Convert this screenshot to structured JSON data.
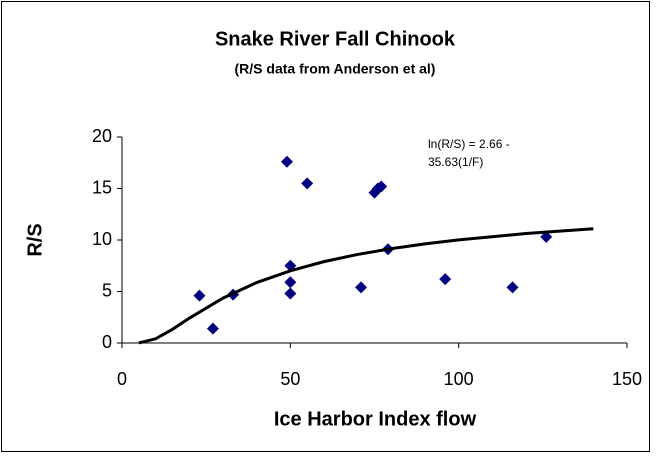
{
  "chart_data": {
    "type": "scatter",
    "title": "Snake River Fall Chinook",
    "subtitle": "(R/S data from Anderson et al)",
    "x_label": "Ice Harbor Index flow",
    "y_label": "R/S",
    "annotation": [
      "ln(R/S) = 2.66 -",
      "35.63(1/F)"
    ],
    "xlim": [
      0,
      150
    ],
    "xticks": [
      0,
      50,
      100,
      150
    ],
    "ylim": [
      0,
      20
    ],
    "yticks": [
      0,
      5,
      10,
      15,
      20
    ],
    "grid": false,
    "series": [
      {
        "style": "markers",
        "color": "#000080",
        "x": [
          23,
          27,
          33,
          49,
          50,
          50,
          50,
          55,
          71,
          75,
          76,
          77,
          79,
          96,
          116,
          126
        ],
        "values": [
          4.6,
          1.4,
          4.7,
          17.6,
          7.5,
          5.9,
          4.8,
          15.5,
          5.4,
          14.6,
          15.0,
          15.2,
          9.1,
          6.2,
          5.4,
          10.3
        ]
      },
      {
        "style": "line",
        "color": "#000000",
        "x": [
          5,
          10,
          15,
          20,
          30,
          40,
          50,
          60,
          70,
          80,
          90,
          100,
          120,
          140
        ],
        "values": [
          0.01,
          0.41,
          1.33,
          2.41,
          4.36,
          5.87,
          7.01,
          7.9,
          8.6,
          9.16,
          9.62,
          10.01,
          10.63,
          11.09
        ]
      }
    ]
  }
}
